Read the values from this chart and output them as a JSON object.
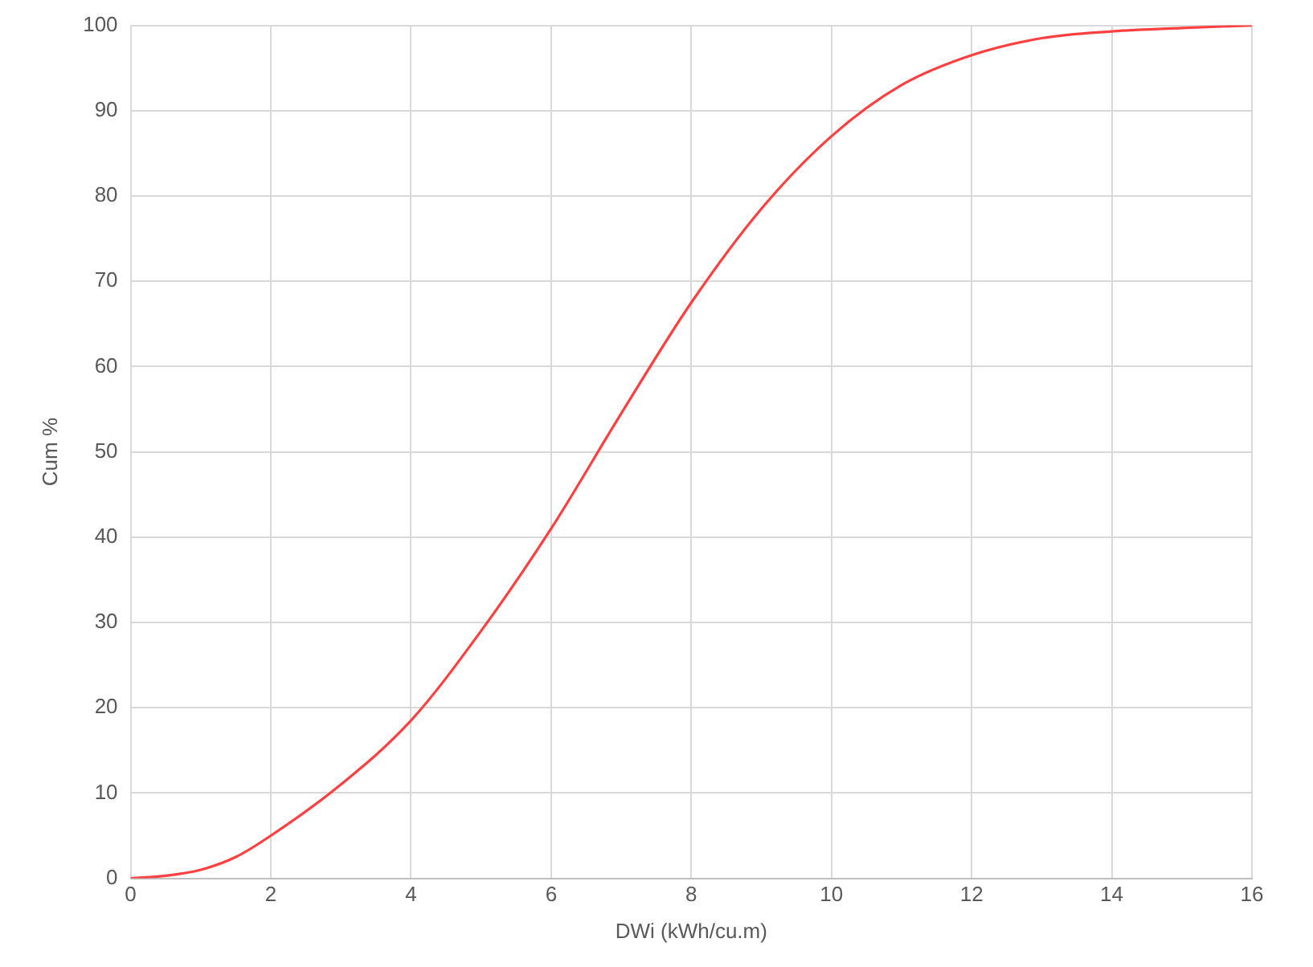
{
  "chart_data": {
    "type": "line",
    "xlabel": "DWi (kWh/cu.m)",
    "ylabel": "Cum %",
    "x": [
      0,
      0.5,
      1,
      1.5,
      2,
      3,
      4,
      5,
      6,
      7,
      8,
      9,
      10,
      11,
      12,
      13,
      14,
      15,
      16
    ],
    "series": [
      {
        "color": "#ff4040",
        "values": [
          0,
          0.3,
          1,
          2.5,
          5,
          11,
          18.5,
          29,
          41,
          54.5,
          67.5,
          78.5,
          87,
          93,
          96.5,
          98.5,
          99.3,
          99.7,
          100
        ]
      }
    ],
    "xlim": [
      0,
      16
    ],
    "xticks": [
      0,
      2,
      4,
      6,
      8,
      10,
      12,
      14,
      16
    ],
    "ylim": [
      0,
      100
    ],
    "yticks": [
      0,
      10,
      20,
      30,
      40,
      50,
      60,
      70,
      80,
      90,
      100
    ],
    "grid": true,
    "marker": "none",
    "line_style": "solid",
    "legend": false
  }
}
